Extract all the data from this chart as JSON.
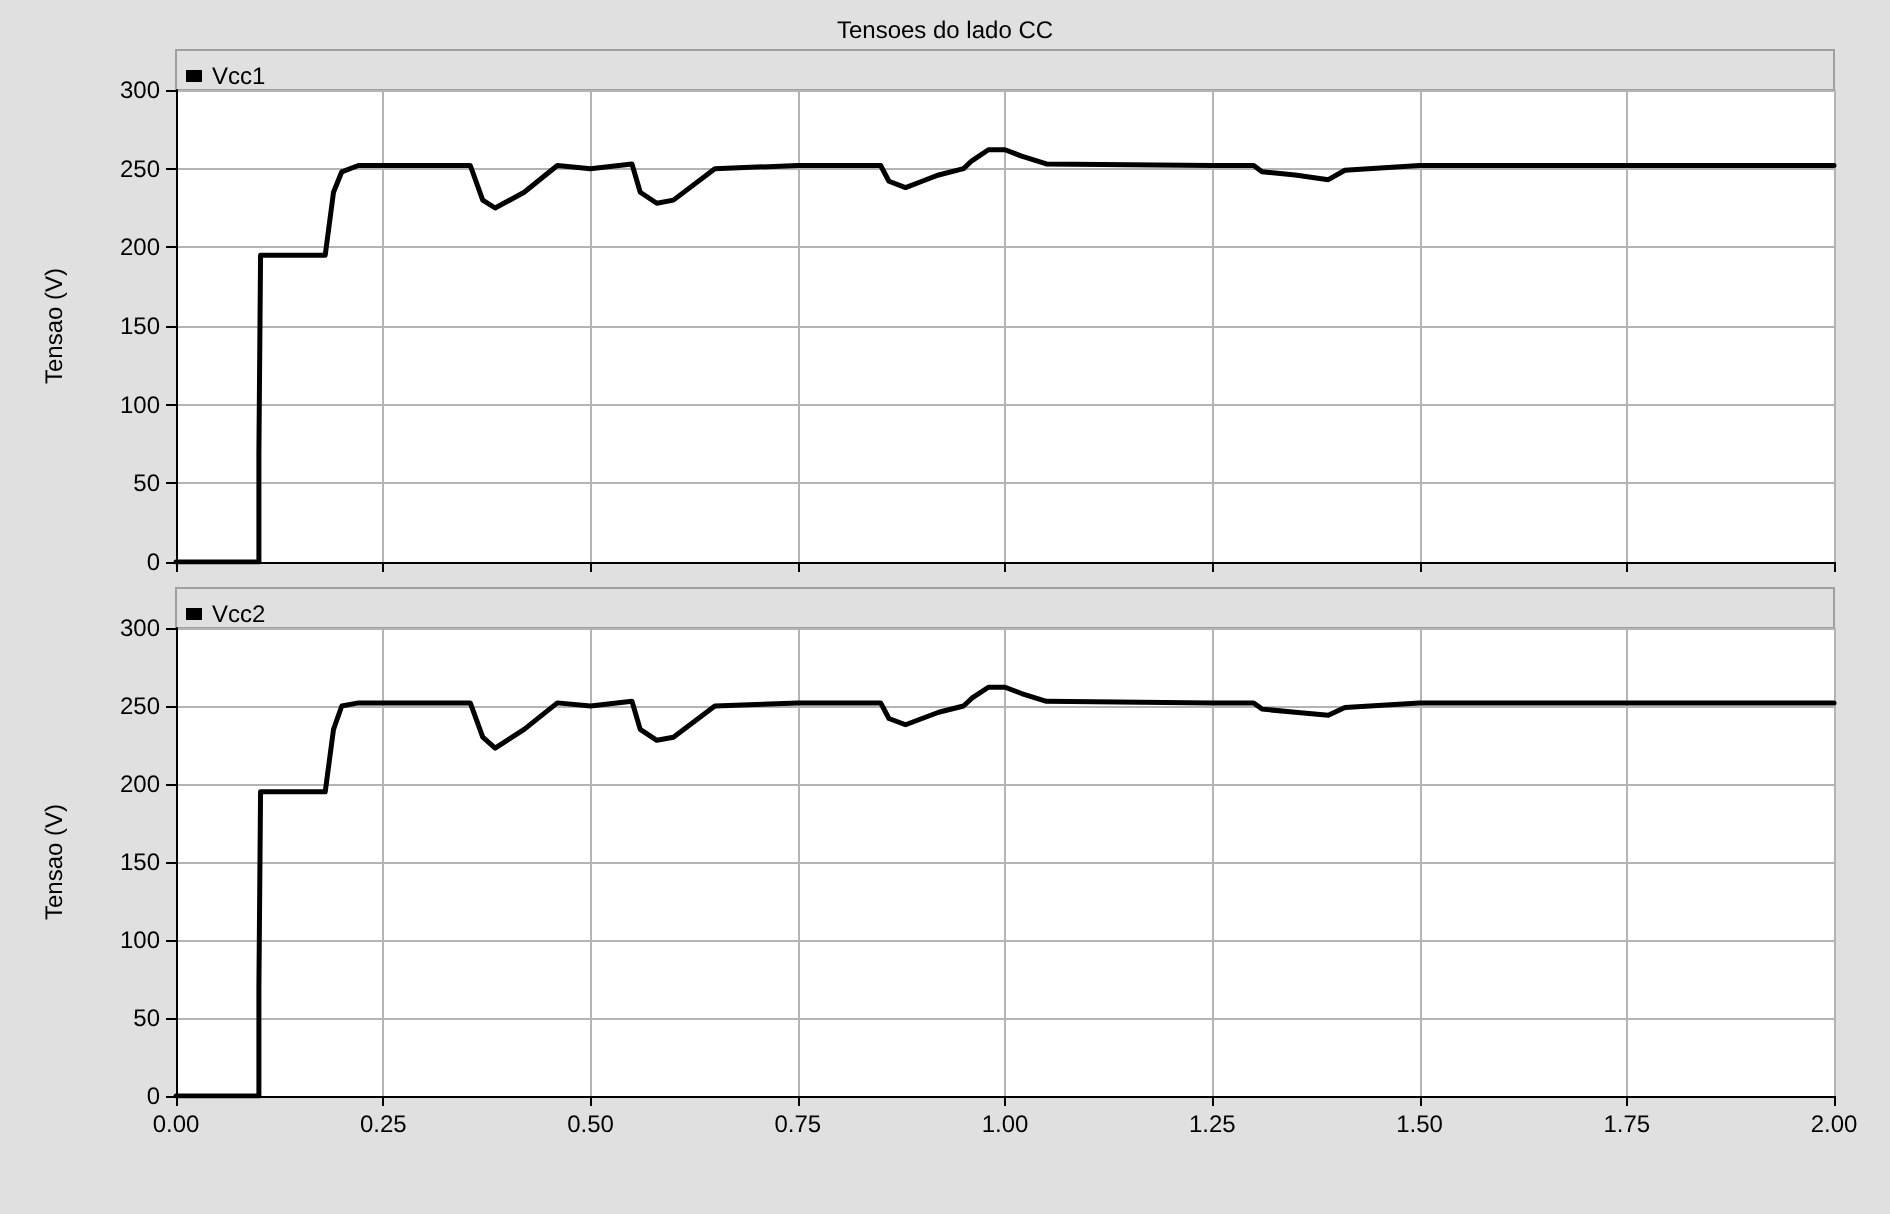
{
  "chart_data": [
    {
      "type": "line",
      "title": "Tensoes do lado CC",
      "ylabel": "Tensao (V)",
      "xlim": [
        0,
        2
      ],
      "xticks": [
        {
          "value": 0,
          "label": null
        },
        {
          "value": 0.25,
          "label": null
        },
        {
          "value": 0.5,
          "label": null
        },
        {
          "value": 0.75,
          "label": null
        },
        {
          "value": 1,
          "label": null
        },
        {
          "value": 1.25,
          "label": null
        },
        {
          "value": 1.5,
          "label": null
        },
        {
          "value": 1.75,
          "label": null
        },
        {
          "value": 2,
          "label": null
        }
      ],
      "ylim": [
        0,
        300
      ],
      "yticks": [
        0,
        50,
        100,
        150,
        200,
        250,
        300
      ],
      "tick_labels": "y",
      "grid": true,
      "legend": "top left",
      "marker": "none",
      "line_style": "solid",
      "series": [
        {
          "name": "Vcc1",
          "color": "#000000",
          "x": [
            0,
            0.1,
            0.1,
            0.102,
            0.18,
            0.19,
            0.2,
            0.22,
            0.355,
            0.37,
            0.385,
            0.42,
            0.46,
            0.5,
            0.55,
            0.56,
            0.58,
            0.6,
            0.65,
            0.7,
            0.75,
            0.85,
            0.86,
            0.88,
            0.9,
            0.92,
            0.95,
            0.96,
            0.98,
            1.0,
            1.02,
            1.05,
            1.25,
            1.3,
            1.31,
            1.35,
            1.39,
            1.41,
            1.5,
            2.0
          ],
          "values": [
            0,
            0,
            70,
            195,
            195,
            235,
            248,
            252,
            252,
            230,
            225,
            235,
            252,
            250,
            253,
            235,
            228,
            230,
            250,
            251,
            252,
            252,
            242,
            238,
            242,
            246,
            250,
            255,
            262,
            262,
            258,
            253,
            252,
            252,
            248,
            246,
            243,
            249,
            252,
            252
          ]
        }
      ]
    },
    {
      "type": "line",
      "ylabel": "Tensao (V)",
      "xlim": [
        0,
        2
      ],
      "xticks": [
        {
          "value": 0,
          "label": "0.00"
        },
        {
          "value": 0.25,
          "label": "0.25"
        },
        {
          "value": 0.5,
          "label": "0.50"
        },
        {
          "value": 0.75,
          "label": "0.75"
        },
        {
          "value": 1,
          "label": "1.00"
        },
        {
          "value": 1.25,
          "label": "1.25"
        },
        {
          "value": 1.5,
          "label": "1.50"
        },
        {
          "value": 1.75,
          "label": "1.75"
        },
        {
          "value": 2,
          "label": "2.00"
        }
      ],
      "ylim": [
        0,
        300
      ],
      "yticks": [
        0,
        50,
        100,
        150,
        200,
        250,
        300
      ],
      "grid": true,
      "legend": "top left",
      "marker": "none",
      "line_style": "solid",
      "series": [
        {
          "name": "Vcc2",
          "color": "#000000",
          "x": [
            0,
            0.1,
            0.1,
            0.102,
            0.18,
            0.19,
            0.2,
            0.22,
            0.355,
            0.37,
            0.385,
            0.42,
            0.46,
            0.5,
            0.55,
            0.56,
            0.58,
            0.6,
            0.65,
            0.7,
            0.75,
            0.85,
            0.86,
            0.88,
            0.9,
            0.92,
            0.95,
            0.96,
            0.98,
            1.0,
            1.02,
            1.05,
            1.25,
            1.3,
            1.31,
            1.35,
            1.39,
            1.41,
            1.5,
            2.0
          ],
          "values": [
            0,
            0,
            70,
            195,
            195,
            235,
            250,
            252,
            252,
            230,
            223,
            235,
            252,
            250,
            253,
            235,
            228,
            230,
            250,
            251,
            252,
            252,
            242,
            238,
            242,
            246,
            250,
            255,
            262,
            262,
            258,
            253,
            252,
            252,
            248,
            246,
            244,
            249,
            252,
            252
          ]
        }
      ]
    }
  ]
}
